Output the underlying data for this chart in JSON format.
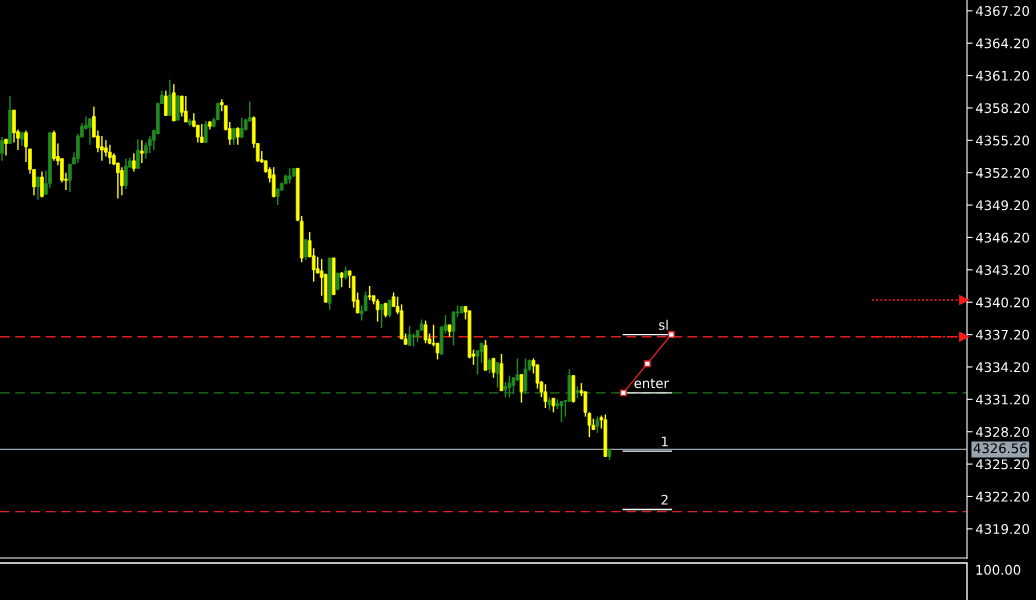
{
  "chart_data": [
    {
      "type": "candlestick",
      "categories": [
        null,
        null,
        null,
        null,
        null,
        null,
        null,
        null,
        null,
        null,
        null,
        null,
        null,
        null,
        null,
        null,
        null,
        null,
        null,
        null,
        null,
        null,
        null,
        null,
        null,
        null,
        null,
        null,
        null,
        null,
        null,
        null,
        null,
        null,
        null,
        null,
        null,
        null,
        null,
        null,
        null,
        null,
        null,
        null,
        null,
        null,
        null,
        null,
        null,
        null,
        null,
        null,
        null,
        null,
        null,
        null,
        null,
        null,
        null,
        null,
        null,
        null,
        null,
        null,
        null,
        null,
        null,
        null,
        null,
        null,
        null,
        null,
        null,
        null,
        null,
        null,
        null,
        null,
        null,
        null,
        null,
        null,
        null,
        null,
        null,
        null,
        null,
        null,
        null,
        null,
        null,
        null,
        null,
        null,
        null,
        null,
        null,
        null,
        null,
        null,
        null,
        null,
        null,
        null,
        null,
        null,
        null,
        null,
        null,
        null,
        null,
        null,
        null,
        null,
        null,
        null,
        null,
        null,
        null,
        null,
        null,
        null,
        null,
        null,
        null,
        null,
        null,
        null,
        null,
        null,
        null,
        null,
        null,
        null,
        null,
        null,
        null,
        null,
        null,
        null,
        null,
        null,
        null,
        null,
        null,
        null,
        null,
        null,
        null,
        null,
        null,
        null,
        null,
        null,
        null,
        null,
        null,
        null,
        null,
        null,
        null,
        null,
        null,
        null,
        null,
        null,
        null,
        null,
        null,
        null,
        null,
        null,
        null,
        null,
        null,
        null,
        null,
        null,
        null,
        null,
        null,
        null,
        null,
        null,
        null,
        null,
        null,
        null,
        null,
        null,
        null,
        null,
        null,
        null,
        null,
        null,
        null,
        null,
        null,
        null,
        null,
        null,
        null,
        null,
        null,
        null,
        null,
        null,
        null,
        null,
        null,
        null,
        null,
        null,
        null,
        null,
        null,
        null,
        null,
        null,
        null,
        null,
        null,
        null,
        null,
        null,
        null,
        null,
        null,
        null,
        null,
        null,
        null,
        null,
        null,
        null,
        null,
        null,
        null,
        null,
        null,
        null
      ],
      "ohlc": [
        [
          4354.0,
          4355.5,
          4353.3,
          4355.2
        ],
        [
          4355.3,
          4355.3,
          4353.8,
          4354.9
        ],
        [
          4354.9,
          4359.3,
          4354.9,
          4358.0
        ],
        [
          4358.0,
          4358.0,
          4355.0,
          4355.9
        ],
        [
          4356.0,
          4356.2,
          4354.3,
          4355.4
        ],
        [
          4355.3,
          4356.0,
          4354.7,
          4355.9
        ],
        [
          4355.9,
          4356.1,
          4353.2,
          4354.6
        ],
        [
          4354.4,
          4354.4,
          4352.1,
          4352.5
        ],
        [
          4352.5,
          4352.5,
          4350.1,
          4350.9
        ],
        [
          4350.9,
          4351.8,
          4349.7,
          4351.8
        ],
        [
          4351.8,
          4352.3,
          4349.9,
          4350.0
        ],
        [
          4350.2,
          4352.4,
          4350.2,
          4351.2
        ],
        [
          4351.2,
          4355.9,
          4350.8,
          4355.9
        ],
        [
          4355.9,
          4356.1,
          4353.3,
          4353.5
        ],
        [
          4353.7,
          4354.9,
          4352.9,
          4353.3
        ],
        [
          4353.5,
          4353.5,
          4351.3,
          4351.5
        ],
        [
          4351.6,
          4352.2,
          4350.6,
          4351.5
        ],
        [
          4351.5,
          4353.0,
          4350.4,
          4353.0
        ],
        [
          4353.0,
          4354.1,
          4353.0,
          4353.6
        ],
        [
          4353.5,
          4355.8,
          4353.1,
          4355.6
        ],
        [
          4355.5,
          4356.8,
          4355.5,
          4356.5
        ],
        [
          4356.3,
          4357.4,
          4356.2,
          4356.6
        ],
        [
          4356.4,
          4357.2,
          4354.8,
          4357.2
        ],
        [
          4357.4,
          4358.3,
          4355.5,
          4355.5
        ],
        [
          4355.6,
          4356.1,
          4354.1,
          4354.5
        ],
        [
          4354.6,
          4355.6,
          4353.3,
          4354.3
        ],
        [
          4354.5,
          4355.2,
          4353.7,
          4354.1
        ],
        [
          4354.1,
          4354.8,
          4353.0,
          4353.6
        ],
        [
          4353.8,
          4354.0,
          4352.9,
          4353.0
        ],
        [
          4353.1,
          4353.1,
          4349.8,
          4352.2
        ],
        [
          4352.4,
          4352.7,
          4350.1,
          4351.0
        ],
        [
          4351.0,
          4353.5,
          4350.7,
          4352.8
        ],
        [
          4352.7,
          4353.6,
          4352.7,
          4353.3
        ],
        [
          4353.3,
          4354.0,
          4352.3,
          4352.6
        ],
        [
          4352.6,
          4355.3,
          4352.6,
          4354.3
        ],
        [
          4354.2,
          4355.2,
          4353.1,
          4354.0
        ],
        [
          4354.0,
          4355.0,
          4353.5,
          4354.7
        ],
        [
          4354.7,
          4355.6,
          4354.0,
          4355.3
        ],
        [
          4355.2,
          4356.2,
          4354.3,
          4356.1
        ],
        [
          4355.8,
          4358.7,
          4355.8,
          4358.6
        ],
        [
          4358.6,
          4359.8,
          4358.6,
          4359.4
        ],
        [
          4359.3,
          4359.8,
          4357.5,
          4357.5
        ],
        [
          4357.5,
          4360.8,
          4357.5,
          4359.4
        ],
        [
          4359.6,
          4360.4,
          4357.0,
          4357.0
        ],
        [
          4357.1,
          4359.4,
          4357.0,
          4359.3
        ],
        [
          4359.3,
          4359.3,
          4357.4,
          4357.8
        ],
        [
          4357.9,
          4359.3,
          4356.9,
          4356.9
        ],
        [
          4356.7,
          4357.2,
          4356.5,
          4357.0
        ],
        [
          4357.0,
          4357.7,
          4356.4,
          4356.5
        ],
        [
          4356.6,
          4356.6,
          4355.0,
          4355.5
        ],
        [
          4355.5,
          4356.7,
          4355.0,
          4355.0
        ],
        [
          4355.0,
          4357.0,
          4355.0,
          4356.7
        ],
        [
          4356.9,
          4357.0,
          4356.2,
          4356.5
        ],
        [
          4356.5,
          4357.3,
          4356.4,
          4357.1
        ],
        [
          4357.1,
          4358.7,
          4357.1,
          4358.6
        ],
        [
          4358.7,
          4359.0,
          4357.9,
          4358.5
        ],
        [
          4358.4,
          4358.4,
          4356.1,
          4356.2
        ],
        [
          4356.3,
          4356.9,
          4354.8,
          4355.3
        ],
        [
          4355.3,
          4356.3,
          4354.8,
          4356.3
        ],
        [
          4356.3,
          4356.4,
          4354.8,
          4355.5
        ],
        [
          4355.5,
          4357.3,
          4355.4,
          4356.3
        ],
        [
          4356.2,
          4357.2,
          4356.1,
          4357.1
        ],
        [
          4357.0,
          4358.8,
          4356.9,
          4357.3
        ],
        [
          4357.3,
          4357.4,
          4354.5,
          4354.9
        ],
        [
          4354.9,
          4354.9,
          4353.2,
          4353.3
        ],
        [
          4353.4,
          4354.2,
          4353.1,
          4353.2
        ],
        [
          4353.3,
          4353.3,
          4352.2,
          4352.3
        ],
        [
          4352.5,
          4352.7,
          4351.3,
          4351.7
        ],
        [
          4352.0,
          4352.7,
          4349.9,
          4350.0
        ],
        [
          4350.0,
          4350.7,
          4349.2,
          4350.7
        ],
        [
          4350.6,
          4351.3,
          4350.5,
          4351.2
        ],
        [
          4351.2,
          4352.0,
          4351.1,
          4351.9
        ],
        [
          4351.6,
          4352.6,
          4351.2,
          4351.9
        ],
        [
          4351.9,
          4352.6,
          4351.8,
          4352.6
        ],
        [
          4352.6,
          4352.6,
          4347.7,
          4347.8
        ],
        [
          4347.7,
          4348.2,
          4343.9,
          4344.3
        ],
        [
          4344.4,
          4346.0,
          4344.1,
          4346.0
        ],
        [
          4345.9,
          4346.7,
          4344.4,
          4344.4
        ],
        [
          4344.5,
          4345.2,
          4342.1,
          4343.2
        ],
        [
          4343.3,
          4344.4,
          4342.9,
          4342.9
        ],
        [
          4343.1,
          4344.2,
          4340.8,
          4342.5
        ],
        [
          4342.8,
          4342.8,
          4340.2,
          4340.2
        ],
        [
          4340.1,
          4344.3,
          4339.5,
          4344.3
        ],
        [
          4344.3,
          4344.3,
          4340.9,
          4340.9
        ],
        [
          4341.4,
          4342.9,
          4341.3,
          4342.9
        ],
        [
          4342.9,
          4343.0,
          4341.6,
          4342.5
        ],
        [
          4342.5,
          4343.5,
          4342.3,
          4343.1
        ],
        [
          4343.1,
          4343.1,
          4341.5,
          4342.7
        ],
        [
          4342.6,
          4342.6,
          4339.7,
          4340.3
        ],
        [
          4340.4,
          4341.1,
          4339.2,
          4339.2
        ],
        [
          4339.1,
          4339.9,
          4338.5,
          4339.4
        ],
        [
          4339.4,
          4341.2,
          4339.4,
          4340.8
        ],
        [
          4340.8,
          4341.7,
          4340.4,
          4340.7
        ],
        [
          4340.8,
          4340.8,
          4340.0,
          4340.3
        ],
        [
          4340.3,
          4340.5,
          4338.4,
          4339.5
        ],
        [
          4339.5,
          4340.0,
          4337.8,
          4340.0
        ],
        [
          4340.1,
          4340.1,
          4338.8,
          4339.0
        ],
        [
          4339.0,
          4340.4,
          4338.8,
          4340.4
        ],
        [
          4340.7,
          4341.1,
          4339.8,
          4339.8
        ],
        [
          4339.8,
          4340.7,
          4339.1,
          4339.3
        ],
        [
          4339.4,
          4340.0,
          4336.8,
          4336.8
        ],
        [
          4336.8,
          4337.3,
          4336.3,
          4336.3
        ],
        [
          4336.2,
          4338.0,
          4336.2,
          4337.2
        ],
        [
          4337.0,
          4337.3,
          4336.1,
          4337.1
        ],
        [
          4337.0,
          4337.6,
          4336.5,
          4337.6
        ],
        [
          4337.6,
          4338.6,
          4337.6,
          4338.2
        ],
        [
          4338.1,
          4338.5,
          4336.4,
          4336.7
        ],
        [
          4336.8,
          4337.3,
          4336.3,
          4336.4
        ],
        [
          4336.4,
          4338.1,
          4336.1,
          4336.3
        ],
        [
          4336.4,
          4336.4,
          4334.9,
          4335.5
        ],
        [
          4335.4,
          4338.0,
          4335.3,
          4337.9
        ],
        [
          4337.6,
          4339.0,
          4337.3,
          4338.1
        ],
        [
          4338.1,
          4338.1,
          4337.0,
          4337.5
        ],
        [
          4337.5,
          4339.3,
          4336.2,
          4339.3
        ],
        [
          4339.2,
          4339.9,
          4338.8,
          4339.3
        ],
        [
          4339.2,
          4339.8,
          4339.2,
          4339.8
        ],
        [
          4339.8,
          4339.8,
          4338.6,
          4339.3
        ],
        [
          4339.4,
          4339.4,
          4335.0,
          4335.1
        ],
        [
          4335.4,
          4335.8,
          4334.4,
          4335.2
        ],
        [
          4335.2,
          4335.7,
          4333.5,
          4335.7
        ],
        [
          4335.6,
          4336.4,
          4334.6,
          4336.4
        ],
        [
          4336.2,
          4336.7,
          4333.9,
          4333.9
        ],
        [
          4334.0,
          4335.0,
          4333.6,
          4334.8
        ],
        [
          4335.0,
          4335.0,
          4333.2,
          4333.7
        ],
        [
          4333.6,
          4334.6,
          4332.3,
          4334.6
        ],
        [
          4334.5,
          4335.4,
          4332.0,
          4332.0
        ],
        [
          4332.1,
          4332.8,
          4331.4,
          4332.4
        ],
        [
          4332.3,
          4333.4,
          4331.4,
          4332.7
        ],
        [
          4332.5,
          4333.2,
          4331.7,
          4333.2
        ],
        [
          4333.0,
          4335.0,
          4332.9,
          4333.5
        ],
        [
          4333.5,
          4333.5,
          4330.9,
          4331.9
        ],
        [
          4332.0,
          4335.0,
          4331.7,
          4334.0
        ],
        [
          4334.0,
          4334.9,
          4333.8,
          4334.8
        ],
        [
          4334.8,
          4335.0,
          4333.6,
          4334.3
        ],
        [
          4334.4,
          4334.4,
          4332.2,
          4332.7
        ],
        [
          4332.8,
          4332.9,
          4331.4,
          4331.9
        ],
        [
          4331.9,
          4332.6,
          4330.4,
          4331.0
        ],
        [
          4330.7,
          4331.4,
          4330.2,
          4331.1
        ],
        [
          4331.3,
          4331.3,
          4330.0,
          4330.6
        ],
        [
          4330.6,
          4331.2,
          4330.3,
          4330.8
        ],
        [
          4330.6,
          4331.0,
          4329.1,
          4331.0
        ],
        [
          4331.0,
          4331.1,
          4329.6,
          4331.1
        ],
        [
          4331.0,
          4334.0,
          4331.0,
          4333.4
        ],
        [
          4333.4,
          4333.4,
          4330.9,
          4331.0
        ],
        [
          4331.8,
          4332.4,
          4331.3,
          4332.0
        ],
        [
          4332.0,
          4332.7,
          4331.5,
          4331.8
        ],
        [
          4331.9,
          4331.9,
          4329.6,
          4330.0
        ],
        [
          4329.9,
          4330.0,
          4327.7,
          4328.8
        ],
        [
          4328.8,
          4329.4,
          4328.4,
          4328.4
        ],
        [
          4328.7,
          4329.6,
          4328.1,
          4329.3
        ],
        [
          4329.5,
          4329.7,
          4328.5,
          4329.3
        ],
        [
          4329.3,
          4329.8,
          4325.9,
          4325.9
        ],
        [
          4325.9,
          4326.6,
          4325.6,
          4326.56
        ],
        null,
        null,
        null,
        null,
        null,
        null,
        null,
        null,
        null,
        null,
        null,
        null,
        null,
        null,
        null,
        null,
        null,
        null,
        null,
        null,
        null,
        null,
        null,
        null,
        null,
        null,
        null,
        null,
        null,
        null,
        null,
        null,
        null,
        null,
        null,
        null,
        null,
        null,
        null,
        null,
        null,
        null,
        null,
        null,
        null,
        null,
        null,
        null,
        null,
        null,
        null,
        null,
        null,
        null,
        null,
        null,
        null,
        null,
        null,
        null,
        null,
        null,
        null,
        null,
        null,
        null,
        null,
        null,
        null,
        null,
        null,
        null,
        null,
        null,
        null,
        null,
        null,
        null,
        null,
        null,
        null,
        null,
        null,
        null,
        null,
        null,
        null,
        null,
        null
      ],
      "colors": [
        "#228b22",
        "#ffff00",
        "#228b22",
        "#ffff00",
        "#ffff00",
        "#228b22",
        "#ffff00",
        "#ffff00",
        "#ffff00",
        "#228b22",
        "#ffff00",
        "#228b22",
        "#228b22",
        "#ffff00",
        "#ffff00",
        "#ffff00",
        "#ffff00",
        "#228b22",
        "#228b22",
        "#228b22",
        "#228b22",
        "#228b22",
        "#228b22",
        "#ffff00",
        "#ffff00",
        "#ffff00",
        "#ffff00",
        "#ffff00",
        "#ffff00",
        "#ffff00",
        "#ffff00",
        "#228b22",
        "#228b22",
        "#ffff00",
        "#228b22",
        "#ffff00",
        "#228b22",
        "#228b22",
        "#228b22",
        "#228b22",
        "#228b22",
        "#ffff00",
        "#228b22",
        "#ffff00",
        "#228b22",
        "#ffff00",
        "#ffff00",
        "#228b22",
        "#ffff00",
        "#ffff00",
        "#ffff00",
        "#228b22",
        "#ffff00",
        "#228b22",
        "#228b22",
        "#ffff00",
        "#ffff00",
        "#ffff00",
        "#228b22",
        "#ffff00",
        "#228b22",
        "#228b22",
        "#228b22",
        "#ffff00",
        "#ffff00",
        "#ffff00",
        "#ffff00",
        "#ffff00",
        "#ffff00",
        "#228b22",
        "#228b22",
        "#228b22",
        "#228b22",
        "#228b22",
        "#ffff00",
        "#ffff00",
        "#228b22",
        "#ffff00",
        "#ffff00",
        "#ffff00",
        "#ffff00",
        "#ffff00",
        "#228b22",
        "#ffff00",
        "#228b22",
        "#ffff00",
        "#228b22",
        "#ffff00",
        "#ffff00",
        "#ffff00",
        "#228b22",
        "#228b22",
        "#ffff00",
        "#ffff00",
        "#ffff00",
        "#228b22",
        "#ffff00",
        "#228b22",
        "#ffff00",
        "#ffff00",
        "#ffff00",
        "#ffff00",
        "#228b22",
        "#228b22",
        "#228b22",
        "#228b22",
        "#ffff00",
        "#ffff00",
        "#ffff00",
        "#ffff00",
        "#228b22",
        "#228b22",
        "#ffff00",
        "#228b22",
        "#228b22",
        "#228b22",
        "#ffff00",
        "#ffff00",
        "#ffff00",
        "#228b22",
        "#228b22",
        "#ffff00",
        "#228b22",
        "#ffff00",
        "#228b22",
        "#ffff00",
        "#228b22",
        "#228b22",
        "#228b22",
        "#228b22",
        "#ffff00",
        "#228b22",
        "#228b22",
        "#ffff00",
        "#ffff00",
        "#ffff00",
        "#ffff00",
        "#228b22",
        "#ffff00",
        "#228b22",
        "#228b22",
        "#228b22",
        "#228b22",
        "#ffff00",
        "#228b22",
        "#ffff00",
        "#ffff00",
        "#ffff00",
        "#ffff00",
        "#228b22",
        "#ffff00",
        "#ffff00",
        "#228b22",
        null,
        null,
        null,
        null,
        null,
        null,
        null,
        null,
        null,
        null,
        null,
        null,
        null,
        null,
        null,
        null,
        null,
        null,
        null,
        null,
        null,
        null,
        null,
        null,
        null,
        null,
        null,
        null,
        null,
        null,
        null,
        null,
        null,
        null,
        null,
        null,
        null,
        null,
        null,
        null,
        null,
        null,
        null,
        null,
        null,
        null,
        null,
        null,
        null,
        null,
        null,
        null,
        null,
        null,
        null,
        null,
        null,
        null,
        null,
        null,
        null,
        null,
        null,
        null,
        null,
        null,
        null,
        null,
        null,
        null,
        null,
        null,
        null,
        null,
        null,
        null,
        null,
        null,
        null,
        null,
        null,
        null,
        null,
        null,
        null,
        null,
        null,
        null,
        null
      ],
      "ylim": [
        4316.5,
        4368.2
      ],
      "yticks": [
        {
          "value": 4319.2,
          "label": "4319.20"
        },
        {
          "value": 4322.2,
          "label": "4322.20"
        },
        {
          "value": 4325.2,
          "label": "4325.20"
        },
        {
          "value": 4328.2,
          "label": "4328.20"
        },
        {
          "value": 4331.2,
          "label": "4331.20"
        },
        {
          "value": 4334.2,
          "label": "4334.20"
        },
        {
          "value": 4337.2,
          "label": "4337.20"
        },
        {
          "value": 4340.2,
          "label": "4340.20"
        },
        {
          "value": 4343.2,
          "label": "4343.20"
        },
        {
          "value": 4346.2,
          "label": "4346.20"
        },
        {
          "value": 4349.2,
          "label": "4349.20"
        },
        {
          "value": 4352.2,
          "label": "4352.20"
        },
        {
          "value": 4355.2,
          "label": "4355.20"
        },
        {
          "value": 4358.2,
          "label": "4358.20"
        },
        {
          "value": 4361.2,
          "label": "4361.20"
        },
        {
          "value": 4364.2,
          "label": "4364.20"
        },
        {
          "value": 4367.2,
          "label": "4367.20"
        }
      ],
      "tick_labels": "y",
      "ref_lines": [
        {
          "axis": "y",
          "value": 4337.0,
          "color": "#e02020",
          "line_style": "dashed"
        },
        {
          "axis": "y",
          "value": 4331.8,
          "color": "#1f7a1f",
          "line_style": "dashed"
        },
        {
          "axis": "y",
          "value": 4326.56,
          "label": "4326.56",
          "color": "#98a4b0",
          "line_style": "solid"
        },
        {
          "axis": "y",
          "value": 4320.8,
          "color": "#e02020",
          "line_style": "dashed"
        },
        {
          "axis": "y",
          "value": 4340.4,
          "color": "#ff1a1a",
          "line_style": "dotted"
        },
        {
          "axis": "y",
          "value": 4337.0,
          "color": "#ff1a1a",
          "line_style": "dotted"
        }
      ],
      "annotations": [
        {
          "text": "sl",
          "y": 4337.2
        },
        {
          "text": "enter",
          "y": 4331.8
        },
        {
          "text": "1",
          "y": 4326.4
        },
        {
          "text": "2",
          "y": 4321.0
        }
      ]
    },
    {
      "type": "other",
      "annotations": [
        "100.00"
      ]
    }
  ]
}
